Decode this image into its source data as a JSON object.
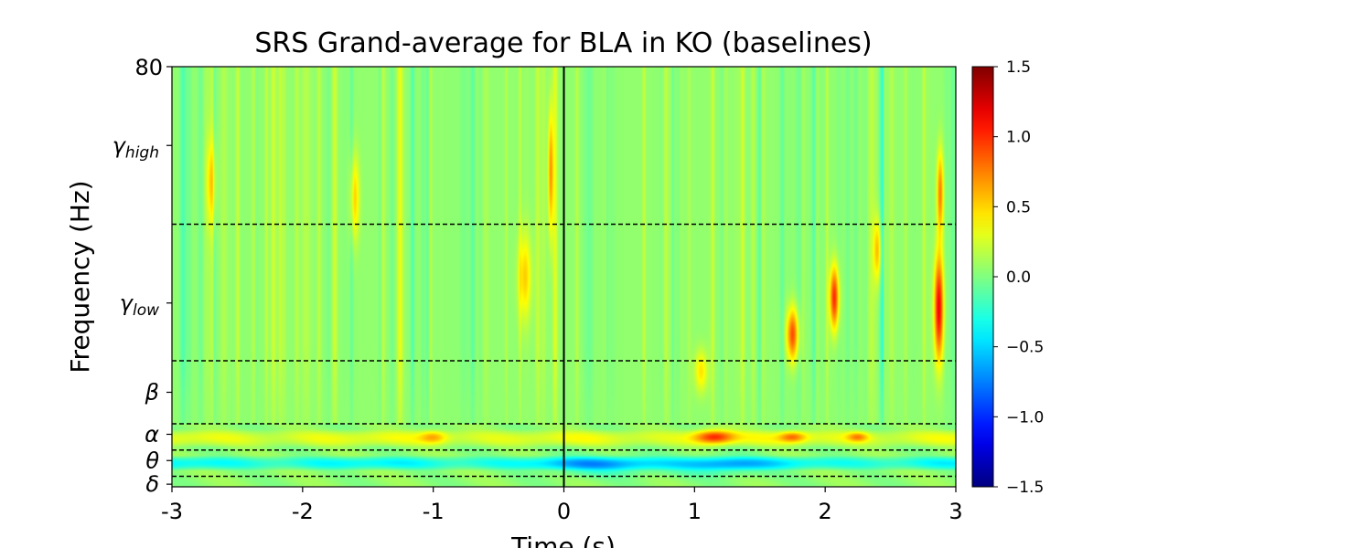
{
  "chart_data": {
    "type": "heatmap",
    "title": "SRS Grand-average for BLA in KO (baselines)",
    "xlabel": "Time (s)",
    "ylabel": "Frequency (Hz)",
    "xlim": [
      -3,
      3
    ],
    "ylim": [
      0,
      80
    ],
    "xticks": [
      -3,
      -2,
      -1,
      0,
      1,
      2,
      3
    ],
    "xtick_labels": [
      "-3",
      "-2",
      "-1",
      "0",
      "1",
      "2",
      "3"
    ],
    "ytick_top_label": "80",
    "band_ticks": [
      {
        "base": "γ",
        "sub": "high",
        "freq": 65
      },
      {
        "base": "γ",
        "sub": "low",
        "freq": 35
      },
      {
        "base": "β",
        "sub": "",
        "freq": 18
      },
      {
        "base": "α",
        "sub": "",
        "freq": 10
      },
      {
        "base": "θ",
        "sub": "",
        "freq": 5
      },
      {
        "base": "δ",
        "sub": "",
        "freq": 0.5
      }
    ],
    "band_boundaries_hz": [
      2,
      7,
      12,
      24,
      50
    ],
    "event_time_s": 0,
    "colorbar": {
      "colormap": "jet",
      "vmin": -1.5,
      "vmax": 1.5,
      "ticks": [
        -1.5,
        -1.0,
        -0.5,
        0.0,
        0.5,
        1.0,
        1.5
      ],
      "tick_labels": [
        "−1.5",
        "−1.0",
        "−0.5",
        "0.0",
        "0.5",
        "1.0",
        "1.5"
      ]
    },
    "features": [
      {
        "type": "band",
        "f0": 3,
        "f1": 6,
        "t0": -3,
        "t1": 3,
        "v": -0.45
      },
      {
        "type": "band",
        "f0": 7.5,
        "f1": 11,
        "t0": -3,
        "t1": 3,
        "v": 0.28
      },
      {
        "type": "blob",
        "t": 0.3,
        "f": 4,
        "dt": 0.45,
        "df": 1.8,
        "v": -0.35
      },
      {
        "type": "blob",
        "t": 1.2,
        "f": 4,
        "dt": 0.35,
        "df": 1.8,
        "v": -0.35
      },
      {
        "type": "blob",
        "t": 1.15,
        "f": 9.5,
        "dt": 0.15,
        "df": 1.3,
        "v": 0.8
      },
      {
        "type": "blob",
        "t": 1.75,
        "f": 9.5,
        "dt": 0.1,
        "df": 1.0,
        "v": 0.55
      },
      {
        "type": "blob",
        "t": 2.25,
        "f": 9.5,
        "dt": 0.08,
        "df": 0.9,
        "v": 0.5
      },
      {
        "type": "blob",
        "t": -1.0,
        "f": 9.5,
        "dt": 0.1,
        "df": 1.2,
        "v": 0.4
      },
      {
        "type": "blob",
        "t": 1.75,
        "f": 29,
        "dt": 0.045,
        "df": 5,
        "v": 0.85
      },
      {
        "type": "blob",
        "t": 2.07,
        "f": 36,
        "dt": 0.035,
        "df": 6,
        "v": 0.95
      },
      {
        "type": "blob",
        "t": 2.87,
        "f": 34,
        "dt": 0.035,
        "df": 10,
        "v": 1.1
      },
      {
        "type": "blob",
        "t": 2.88,
        "f": 56,
        "dt": 0.025,
        "df": 8,
        "v": 0.7
      },
      {
        "type": "blob",
        "t": -0.1,
        "f": 60,
        "dt": 0.02,
        "df": 12,
        "v": 0.65
      },
      {
        "type": "blob",
        "t": -0.3,
        "f": 40,
        "dt": 0.05,
        "df": 8,
        "v": 0.45
      },
      {
        "type": "blob",
        "t": -1.6,
        "f": 55,
        "dt": 0.035,
        "df": 8,
        "v": 0.45
      },
      {
        "type": "blob",
        "t": -2.7,
        "f": 58,
        "dt": 0.035,
        "df": 8,
        "v": 0.4
      },
      {
        "type": "blob",
        "t": 2.4,
        "f": 45,
        "dt": 0.03,
        "df": 6,
        "v": 0.5
      },
      {
        "type": "blob",
        "t": 1.05,
        "f": 22,
        "dt": 0.05,
        "df": 4,
        "v": 0.4
      }
    ]
  }
}
